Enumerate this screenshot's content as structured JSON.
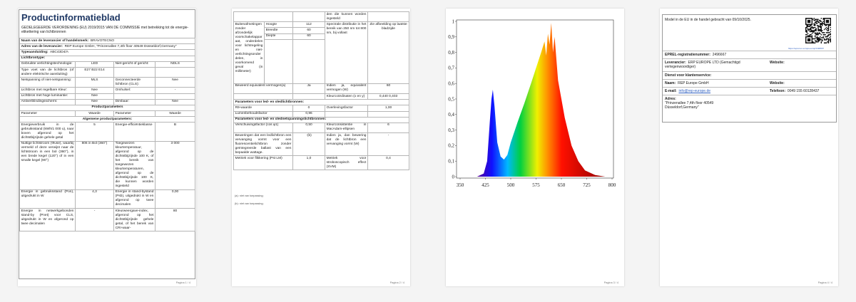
{
  "pages": [
    {
      "title": "Productinformatieblad",
      "regulation": "GEDELEGEERDE VERORDENING (EU) 2019/2015 VAN DE COMMISSIE met betrekking tot de energie-etikettering van lichtbronnen",
      "supplier_label": "Naam van de leverancier of handelsmerk:",
      "supplier": "BRAVOTECNO",
      "address_label": "Adres van de leverancier:",
      "address": "REP Europe GmbH, \"Prinzenallee 7,4th floor 40549 Düsseldorf,Germany\"",
      "model_label": "Typeaanduiding:",
      "model": "ABC43D4/A",
      "type_heading": "Lichtbrontype:",
      "rows": [
        [
          "Gebruikte verlichtingstechnologie:",
          "LED",
          "Niet-gericht of gericht:",
          "NDLS"
        ],
        [
          "Type voet van de lichtbron (of andere elektrische aansluiting)",
          "E27 B22 E14",
          null,
          null
        ],
        [
          "Netspanning of niet-netspanning:",
          "MLS",
          "Geconnecteerde lichtbron (CLS):",
          "Nee"
        ],
        [
          "Lichtbron met regelbare Kleur:",
          "Nee",
          "Omhulsel:",
          "-"
        ],
        [
          "Lichtbron met hoge luminantie:",
          "Nee",
          null,
          null
        ],
        [
          "Antiverblindingsscherm:",
          "Nee",
          "Dimbaar:",
          "Nee"
        ]
      ],
      "params_heading": "Productparameters",
      "params_header": [
        "Parameter",
        "Waarde",
        "Parameter",
        "Waarde"
      ],
      "general_heading": "Algemene productparameters:",
      "params": [
        [
          "Energieverbruik in de gebruiksstand (kWh/1 000 u), naar boven afgerond op het dichtstbijzijnde gehele getal",
          "5",
          "Energie-efficiëntieklasse",
          "B"
        ],
        [
          "Nuttige lichtstroom (Φuse), waarbij vermeld of deze verwijst naar de lichtstroom in een bol (360°), in een brede kegel (120°) of in een smalle kegel (90°)",
          "806 in Bol (360°)",
          "Toegewezen kleurtemperatuur, afgerond op de dichtstbijzijnde 100 K, of het bereik van toegewezen kleurtemperaturen, afgerond op de dichtstbijzijnde 100 K, die kunnen worden ingesteld",
          "3 000"
        ],
        [
          "Energie in gebruiksstand (Pon), uitgedrukt in W",
          "4,3",
          "Energie in stand-bystand (Psb), uitgedrukt in W en afgerond op twee decimalen",
          "0,00"
        ],
        [
          "Energie in netwerkgebonden stand-by (Pnet) voor CLS, uitgedrukt in W en afgerond op twee decimalen",
          "-",
          "Kleurweergave-index, afgerond op het dichtstbijzijnde gehele getal, of het bereik van CRI-waar-",
          "80"
        ]
      ],
      "footer": "Pagina 1 / 4"
    },
    {
      "top": [
        [
          null,
          null,
          "den die kunnen worden ingesteld",
          null
        ]
      ],
      "dims": {
        "label": "Buitenafmetingen zonder afzonderlijk voorschakelapparaat, onderdelen voor lichtregeling en niet-verlichtingsonderdelen, in voorkomend geval (in millimeter)",
        "items": [
          [
            "Hoogte",
            "112"
          ],
          [
            "Breedte",
            "60"
          ],
          [
            "Diepte",
            "60"
          ]
        ],
        "spectral_label": "Spectrale distributie in het bereik van 250 nm tot 800 nm, bij vollast",
        "spectral_value": "Zie afbeelding op laatste bladzijde"
      },
      "rows": [
        [
          "Beweerd equivalent vermogen(a)",
          "Ja",
          "Indien ja, equivalent vermogen (W)",
          "60"
        ],
        [
          null,
          null,
          "Kleurcoördinaten (x en y)",
          "0,440 0,403"
        ]
      ],
      "led_heading": "Parameters voor led- en oledlichtbronnen:",
      "led_rows": [
        [
          "R9-waarde",
          "0",
          "Overlevingsfactor",
          "1,00"
        ],
        [
          "Lumenbehoudsfactor",
          "0,96",
          null,
          null
        ]
      ],
      "mains_heading": "Parameters voor led- en olednetspanningslichtbronnen:",
      "mains_rows": [
        [
          "Verschuivingsfactor (cos φ1)",
          "0,50",
          "Kleurconsistentie in MacAdam-ellipsen",
          "6"
        ],
        [
          "Beweringen dat een ledlichtbron een vervanging vormt voor een fluorescentielichtbron zonder geïntegreerde ballast van een bepaalde wattage.",
          "-(b)",
          "Indien ja, dan bewering dat de lichtbron een vervanging vormt (W)",
          "-"
        ],
        [
          "Metriek voor flikkering (Pst LM)",
          "1,0",
          "Metriek voor stroboscopisch effect (SVM)",
          "0,4"
        ]
      ],
      "notes": [
        "(a): niet van toepassing;",
        "(b): niet van toepassing;"
      ],
      "footer": "Pagina 2 / 4"
    },
    {
      "chart": {
        "xlim": [
          350,
          800
        ],
        "xticks": [
          350,
          425,
          500,
          575,
          650,
          725,
          800
        ],
        "ylim": [
          0,
          1
        ],
        "yticks": [
          0,
          {
            "value": 0.1,
            "label": "0,1"
          },
          {
            "value": 0.2,
            "label": "0,2"
          },
          {
            "value": 0.3,
            "label": "0,3"
          },
          {
            "value": 0.4,
            "label": "0,4"
          },
          {
            "value": 0.5,
            "label": "0,5"
          },
          {
            "value": 0.6,
            "label": "0,6"
          },
          {
            "value": 0.7,
            "label": "0,7"
          },
          {
            "value": 0.8,
            "label": "0,8"
          },
          {
            "value": 0.9,
            "label": "0,9"
          },
          1
        ]
      },
      "footer": "Pagina 3 / 4"
    },
    {
      "placed": "Model in de EU in de handel gebracht van 09/10/2025.",
      "qr_url": "https://eprel.ec.europa.eu/qr/2496667",
      "eprel_label": "EPREL-registratienummer:",
      "eprel": "2496667",
      "supplier_label": "Leverancier:",
      "supplier": "ERP EUROPE LTD (Gemachtigd vertegenwoordiger)",
      "website_label": "Website:",
      "service_heading": "Dienst voor klantenservice:",
      "name_label": "Naam:",
      "name": "REP Europe GmbH",
      "service_website_label": "Website:",
      "email_label": "E-mail:",
      "email": "info@rep-europe.de",
      "phone_label": "Telefoon:",
      "phone": "0049 155 60128437",
      "address_label": "Adres:",
      "address": "\"Prinzenallee 7,4th floor 40549 Düsseldorf,Germany\"",
      "footer": "Pagina 4 / 4"
    }
  ]
}
